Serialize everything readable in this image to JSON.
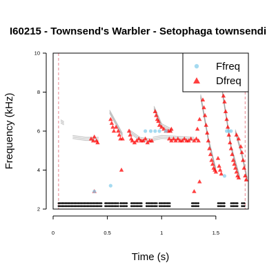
{
  "chart_data": {
    "type": "scatter",
    "title": "I60215 - Townsend's Warbler - Setophaga townsendi",
    "xlabel": "Time (s)",
    "ylabel": "Frequency (kHz)",
    "xlim": [
      0,
      1.8
    ],
    "ylim": [
      2,
      10
    ],
    "x_ticks": [
      "0",
      "0.5",
      "1",
      "1.5"
    ],
    "y_ticks": [
      "2",
      "4",
      "6",
      "8",
      "10"
    ],
    "x_tick_values": [
      0,
      0.5,
      1,
      1.5
    ],
    "y_tick_values": [
      2,
      4,
      6,
      8,
      10
    ],
    "legend": {
      "position": "top-right",
      "entries": [
        {
          "name": "Ffreq",
          "color": "#87CEEB",
          "marker": "circle"
        },
        {
          "name": "Dfreq",
          "color": "#FF0000",
          "marker": "triangle"
        }
      ]
    },
    "selection_lines": {
      "color": "#E8808C",
      "x": [
        0.05,
        1.77
      ]
    },
    "spectrogram_color": "#808080",
    "series": [
      {
        "name": "Dfreq",
        "points": [
          [
            0.35,
            5.6
          ],
          [
            0.37,
            5.5
          ],
          [
            0.38,
            5.7
          ],
          [
            0.4,
            5.5
          ],
          [
            0.41,
            5.4
          ],
          [
            0.38,
            2.9
          ],
          [
            0.53,
            6.6
          ],
          [
            0.54,
            6.4
          ],
          [
            0.55,
            6.2
          ],
          [
            0.56,
            6.0
          ],
          [
            0.58,
            6.2
          ],
          [
            0.6,
            6.0
          ],
          [
            0.61,
            5.8
          ],
          [
            0.62,
            5.6
          ],
          [
            0.64,
            5.6
          ],
          [
            0.63,
            4.0
          ],
          [
            0.7,
            6.0
          ],
          [
            0.71,
            5.8
          ],
          [
            0.72,
            5.6
          ],
          [
            0.73,
            5.5
          ],
          [
            0.75,
            5.4
          ],
          [
            0.77,
            5.5
          ],
          [
            0.79,
            5.6
          ],
          [
            0.81,
            5.5
          ],
          [
            0.83,
            5.5
          ],
          [
            0.85,
            5.6
          ],
          [
            0.87,
            5.4
          ],
          [
            0.89,
            5.5
          ],
          [
            0.91,
            5.5
          ],
          [
            0.94,
            7.0
          ],
          [
            0.95,
            6.8
          ],
          [
            0.96,
            6.6
          ],
          [
            0.97,
            6.5
          ],
          [
            0.98,
            6.3
          ],
          [
            1.0,
            6.2
          ],
          [
            1.02,
            6.1
          ],
          [
            1.04,
            6.0
          ],
          [
            1.06,
            6.0
          ],
          [
            1.08,
            6.0
          ],
          [
            1.09,
            6.1
          ],
          [
            1.07,
            5.6
          ],
          [
            1.09,
            5.5
          ],
          [
            1.11,
            5.6
          ],
          [
            1.13,
            5.5
          ],
          [
            1.15,
            5.6
          ],
          [
            1.17,
            5.5
          ],
          [
            1.19,
            5.5
          ],
          [
            1.21,
            5.6
          ],
          [
            1.23,
            5.5
          ],
          [
            1.25,
            5.5
          ],
          [
            1.27,
            5.6
          ],
          [
            1.3,
            5.5
          ],
          [
            1.32,
            5.6
          ],
          [
            1.33,
            6.1
          ],
          [
            1.34,
            5.5
          ],
          [
            1.35,
            6.6
          ],
          [
            1.3,
            2.9
          ],
          [
            1.35,
            3.4
          ],
          [
            1.38,
            7.6
          ],
          [
            1.39,
            7.2
          ],
          [
            1.4,
            6.8
          ],
          [
            1.41,
            6.3
          ],
          [
            1.42,
            5.9
          ],
          [
            1.43,
            5.5
          ],
          [
            1.44,
            5.1
          ],
          [
            1.45,
            4.8
          ],
          [
            1.46,
            4.5
          ],
          [
            1.47,
            4.3
          ],
          [
            1.48,
            4.1
          ],
          [
            1.49,
            4.0
          ],
          [
            1.5,
            3.9
          ],
          [
            1.52,
            4.6
          ],
          [
            1.53,
            4.2
          ],
          [
            1.54,
            4.0
          ],
          [
            1.55,
            3.8
          ],
          [
            1.57,
            7.8
          ],
          [
            1.58,
            7.5
          ],
          [
            1.59,
            7.0
          ],
          [
            1.6,
            6.6
          ],
          [
            1.61,
            6.2
          ],
          [
            1.62,
            5.8
          ],
          [
            1.63,
            5.4
          ],
          [
            1.64,
            5.1
          ],
          [
            1.65,
            4.8
          ],
          [
            1.66,
            4.5
          ],
          [
            1.67,
            4.3
          ],
          [
            1.68,
            4.1
          ],
          [
            1.69,
            3.9
          ],
          [
            1.7,
            3.7
          ],
          [
            1.71,
            3.6
          ],
          [
            1.69,
            5.8
          ],
          [
            1.71,
            5.6
          ],
          [
            1.73,
            5.2
          ],
          [
            1.74,
            4.9
          ],
          [
            1.75,
            4.5
          ],
          [
            1.76,
            4.1
          ],
          [
            1.77,
            3.7
          ],
          [
            1.78,
            3.5
          ]
        ]
      },
      {
        "name": "Ffreq",
        "points": [
          [
            0.38,
            2.9
          ],
          [
            0.53,
            3.2
          ],
          [
            0.85,
            6.0
          ],
          [
            0.9,
            6.0
          ],
          [
            0.94,
            6.0
          ],
          [
            0.98,
            6.0
          ],
          [
            1.04,
            6.0
          ],
          [
            1.58,
            3.7
          ],
          [
            1.6,
            6.0
          ],
          [
            1.62,
            6.0
          ],
          [
            1.64,
            6.0
          ]
        ]
      }
    ]
  }
}
